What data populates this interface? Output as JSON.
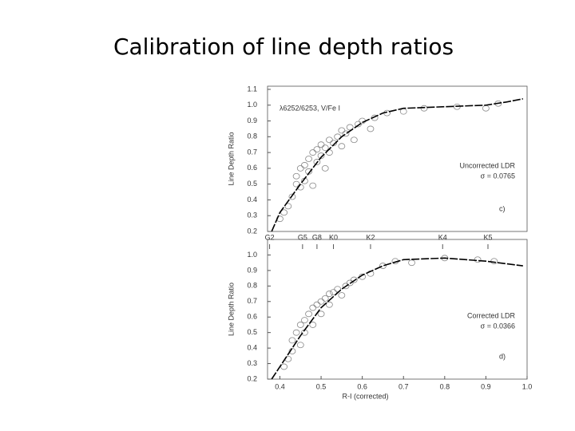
{
  "title": "Calibration of line depth ratios",
  "chart_data": [
    {
      "type": "scatter",
      "ylabel": "Line Depth Ratio",
      "xlim": [
        0.37,
        1.0
      ],
      "ylim": [
        0.2,
        1.12
      ],
      "yticks": [
        0.2,
        0.3,
        0.4,
        0.5,
        0.6,
        0.7,
        0.8,
        0.9,
        {
          "value": 1,
          "label": "1.0"
        },
        1.1
      ],
      "annotations": {
        "line": "λ6252/6253, V/Fe I",
        "note": "Uncorrected LDR",
        "sigma": "σ = 0.0765",
        "panel": "c)"
      },
      "series": [
        {
          "kind": "scatter",
          "color": "#888888",
          "x": [
            0.4,
            0.41,
            0.42,
            0.43,
            0.44,
            0.44,
            0.45,
            0.45,
            0.46,
            0.46,
            0.47,
            0.47,
            0.48,
            0.48,
            0.49,
            0.49,
            0.5,
            0.5,
            0.51,
            0.51,
            0.52,
            0.52,
            0.53,
            0.54,
            0.55,
            0.55,
            0.56,
            0.57,
            0.58,
            0.59,
            0.6,
            0.62,
            0.63,
            0.66,
            0.7,
            0.75,
            0.83,
            0.9,
            0.93
          ],
          "values": [
            0.28,
            0.32,
            0.36,
            0.42,
            0.5,
            0.55,
            0.6,
            0.48,
            0.62,
            0.52,
            0.66,
            0.58,
            0.7,
            0.49,
            0.64,
            0.72,
            0.68,
            0.75,
            0.6,
            0.73,
            0.78,
            0.7,
            0.76,
            0.8,
            0.74,
            0.84,
            0.82,
            0.86,
            0.78,
            0.88,
            0.9,
            0.85,
            0.92,
            0.95,
            0.96,
            0.98,
            0.99,
            0.98,
            1.01
          ]
        },
        {
          "kind": "line",
          "color": "#000000",
          "x": [
            0.38,
            0.4,
            0.45,
            0.5,
            0.55,
            0.6,
            0.65,
            0.7,
            0.8,
            0.9,
            0.95,
            0.99
          ],
          "values": [
            0.2,
            0.32,
            0.5,
            0.67,
            0.8,
            0.89,
            0.95,
            0.98,
            0.99,
            1.0,
            1.02,
            1.04
          ]
        }
      ]
    },
    {
      "type": "scatter",
      "ylabel": "Line Depth Ratio",
      "xlabel": "R-I (corrected)",
      "xlim": [
        0.37,
        1.0
      ],
      "ylim": [
        0.2,
        1.1
      ],
      "xticks": [
        0.4,
        0.5,
        0.6,
        0.7,
        0.8,
        0.9,
        {
          "value": 1,
          "label": "1.0"
        }
      ],
      "yticks": [
        0.2,
        0.3,
        0.4,
        0.5,
        0.6,
        0.7,
        0.8,
        0.9,
        {
          "value": 1,
          "label": "1.0"
        }
      ],
      "spectral_types": {
        "labels": [
          "G2",
          "G5",
          "G8",
          "K0",
          "K2",
          "K4",
          "K5"
        ],
        "x": [
          0.375,
          0.455,
          0.49,
          0.53,
          0.62,
          0.795,
          0.905
        ]
      },
      "annotations": {
        "note": "Corrected LDR",
        "sigma": "σ = 0.0366",
        "panel": "d)"
      },
      "series": [
        {
          "kind": "scatter",
          "color": "#888888",
          "x": [
            0.41,
            0.42,
            0.43,
            0.43,
            0.44,
            0.45,
            0.45,
            0.46,
            0.46,
            0.47,
            0.48,
            0.48,
            0.49,
            0.5,
            0.5,
            0.51,
            0.52,
            0.52,
            0.53,
            0.54,
            0.55,
            0.56,
            0.57,
            0.58,
            0.6,
            0.62,
            0.65,
            0.68,
            0.72,
            0.8,
            0.88,
            0.92
          ],
          "values": [
            0.28,
            0.33,
            0.38,
            0.45,
            0.5,
            0.42,
            0.55,
            0.58,
            0.5,
            0.62,
            0.55,
            0.66,
            0.68,
            0.62,
            0.7,
            0.72,
            0.68,
            0.75,
            0.76,
            0.78,
            0.74,
            0.8,
            0.82,
            0.84,
            0.86,
            0.88,
            0.93,
            0.96,
            0.95,
            0.98,
            0.97,
            0.96
          ]
        },
        {
          "kind": "line",
          "color": "#000000",
          "x": [
            0.38,
            0.4,
            0.45,
            0.5,
            0.55,
            0.6,
            0.65,
            0.7,
            0.8,
            0.9,
            0.99
          ],
          "values": [
            0.2,
            0.28,
            0.48,
            0.66,
            0.78,
            0.87,
            0.93,
            0.97,
            0.98,
            0.96,
            0.93
          ]
        }
      ]
    }
  ]
}
